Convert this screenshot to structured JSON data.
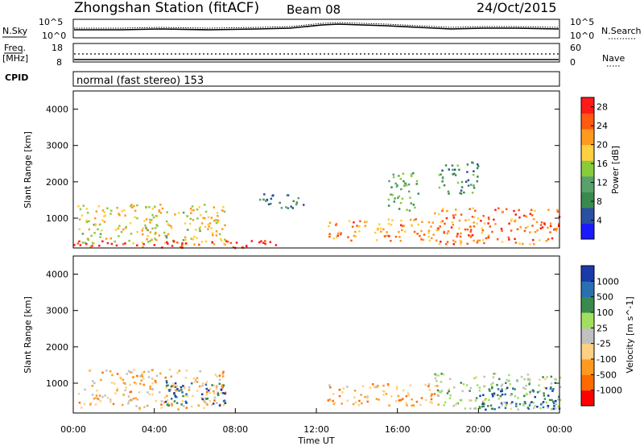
{
  "header": {
    "station_title": "Zhongshan Station (fitACF)",
    "beam": "Beam 08",
    "date": "24/Oct/2015"
  },
  "noise_panel": {
    "left_label": "N.Sky",
    "left_ticks": [
      "10^5",
      "10^0"
    ],
    "right_label": "N.Search",
    "right_ticks": [
      "10^5",
      "10^0"
    ]
  },
  "freq_panel": {
    "left_label_1": "Freq.",
    "left_label_2": "[MHz]",
    "left_ticks": [
      "18",
      "8"
    ],
    "right_label": "Nave",
    "right_ticks": [
      "60",
      "0"
    ]
  },
  "cpid": {
    "label": "CPID",
    "value": "normal (fast stereo) 153"
  },
  "colors": {
    "power_scale": [
      "#1a1aff",
      "#2a50a0",
      "#3a8a50",
      "#5aa06a",
      "#8acb3a",
      "#ffd040",
      "#ff9a20",
      "#ff5a10",
      "#ff1a1a"
    ],
    "velocity_scale": [
      "#ff0000",
      "#ff6a00",
      "#ff9a20",
      "#ffd080",
      "#c0c0c0",
      "#a0e060",
      "#3a8a50",
      "#2a70b0",
      "#1a3aaa"
    ]
  },
  "chart_data": [
    {
      "type": "heatmap",
      "title": "Power",
      "xlabel": "Time UT",
      "ylabel": "Slant Range [km]",
      "y_ticks": [
        "1000",
        "2000",
        "3000",
        "4000"
      ],
      "ylim": [
        180,
        4500
      ],
      "xlim": [
        0,
        24
      ],
      "colorbar": {
        "label": "Power [dB]",
        "ticks": [
          "4",
          "8",
          "12",
          "16",
          "20",
          "24",
          "28"
        ],
        "range": [
          0,
          30
        ]
      },
      "scatter_regions": [
        {
          "t0": 0.2,
          "t1": 7.5,
          "r0": 300,
          "r1": 1400,
          "value_dB": 18
        },
        {
          "t0": 0.0,
          "t1": 10.0,
          "r0": 200,
          "r1": 400,
          "value_dB": 28
        },
        {
          "t0": 12.5,
          "t1": 18.0,
          "r0": 400,
          "r1": 1000,
          "value_dB": 22
        },
        {
          "t0": 17.8,
          "t1": 24.0,
          "r0": 300,
          "r1": 1300,
          "value_dB": 24
        },
        {
          "t0": 9.0,
          "t1": 11.5,
          "r0": 1300,
          "r1": 1700,
          "value_dB": 8
        },
        {
          "t0": 15.5,
          "t1": 17.0,
          "r0": 1200,
          "r1": 2300,
          "value_dB": 12
        },
        {
          "t0": 18.0,
          "t1": 20.0,
          "r0": 1700,
          "r1": 2600,
          "value_dB": 10
        }
      ]
    },
    {
      "type": "heatmap",
      "title": "Velocity",
      "xlabel": "Time UT",
      "ylabel": "Slant Range [km]",
      "y_ticks": [
        "1000",
        "2000",
        "3000",
        "4000"
      ],
      "ylim": [
        180,
        4500
      ],
      "xlim": [
        0,
        24
      ],
      "x_ticks": [
        "00:00",
        "04:00",
        "08:00",
        "12:00",
        "16:00",
        "20:00",
        "00:00"
      ],
      "colorbar": {
        "label": "Velocity [m s^-1]",
        "ticks": [
          "1000",
          "500",
          "100",
          "25",
          "-25",
          "-100",
          "-500",
          "-1000"
        ],
        "range": [
          -1000,
          1000
        ]
      },
      "scatter_regions": [
        {
          "t0": 0.2,
          "t1": 7.5,
          "r0": 300,
          "r1": 1400,
          "value_ms": -300
        },
        {
          "t0": 4.5,
          "t1": 7.5,
          "r0": 400,
          "r1": 1100,
          "value_ms": 700
        },
        {
          "t0": 12.5,
          "t1": 18.0,
          "r0": 400,
          "r1": 1000,
          "value_ms": -400
        },
        {
          "t0": 17.8,
          "t1": 24.0,
          "r0": 300,
          "r1": 1300,
          "value_ms": 200
        },
        {
          "t0": 20.0,
          "t1": 24.0,
          "r0": 300,
          "r1": 900,
          "value_ms": 700
        }
      ]
    }
  ]
}
